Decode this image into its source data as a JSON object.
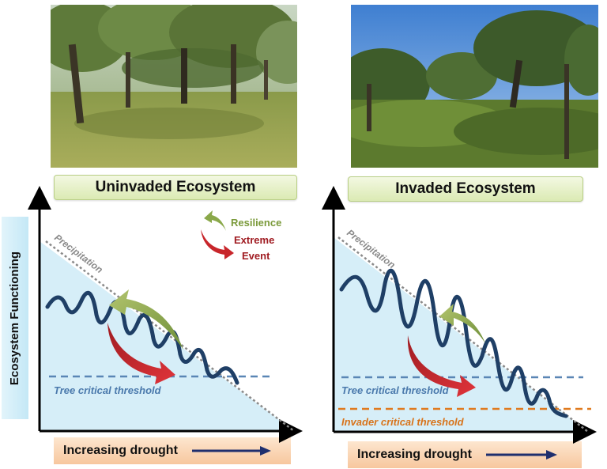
{
  "left_panel": {
    "title": "Uninvaded Ecosystem",
    "precipitation_label": "Precipitation",
    "tree_threshold_label": "Tree critical threshold",
    "legend": {
      "resilience": "Resilience",
      "extreme_event_line1": "Extreme",
      "extreme_event_line2": "Event"
    }
  },
  "right_panel": {
    "title": "Invaded Ecosystem",
    "precipitation_label": "Precipitation",
    "tree_threshold_label": "Tree critical threshold",
    "invader_threshold_label": "Invader critical threshold"
  },
  "y_axis_label": "Ecosystem Functioning",
  "x_axis_label": "Increasing drought",
  "colors": {
    "wave": "#1f3f66",
    "tree_threshold": "#5a86b5",
    "invader_threshold": "#e07a1f",
    "resilience_arrow": "#8aa84a",
    "extreme_event_arrow": "#c8262b",
    "fill": "#d6eef8"
  }
}
